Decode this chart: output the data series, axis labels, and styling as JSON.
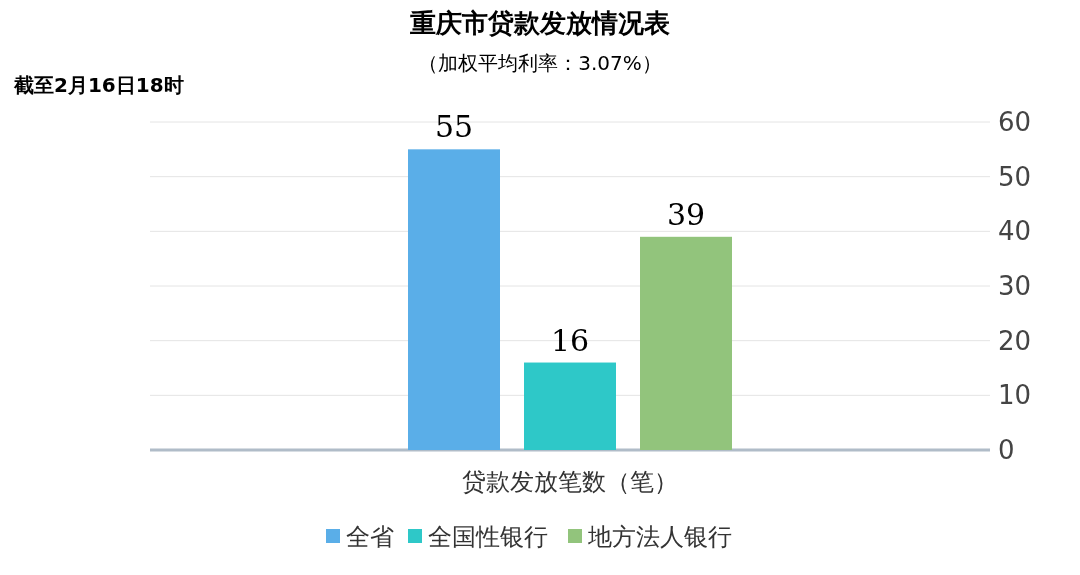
{
  "chart_data": {
    "type": "bar",
    "title": "重庆市贷款发放情况表",
    "subtitle": "（加权平均利率：3.07%）",
    "annotations": [
      "截至2月16日18时"
    ],
    "categories": [
      "贷款发放笔数（笔）"
    ],
    "series": [
      {
        "name": "全省",
        "color": "#5aaee8",
        "values": [
          55
        ]
      },
      {
        "name": "全国性银行",
        "color": "#2ec8c8",
        "values": [
          16
        ]
      },
      {
        "name": "地方法人银行",
        "color": "#92c47c",
        "values": [
          39
        ]
      }
    ],
    "ylim": [
      0,
      60
    ],
    "yticks": [
      0,
      10,
      20,
      30,
      40,
      50,
      60
    ],
    "grid": "y",
    "legend": "bottom",
    "data_labels": true
  }
}
